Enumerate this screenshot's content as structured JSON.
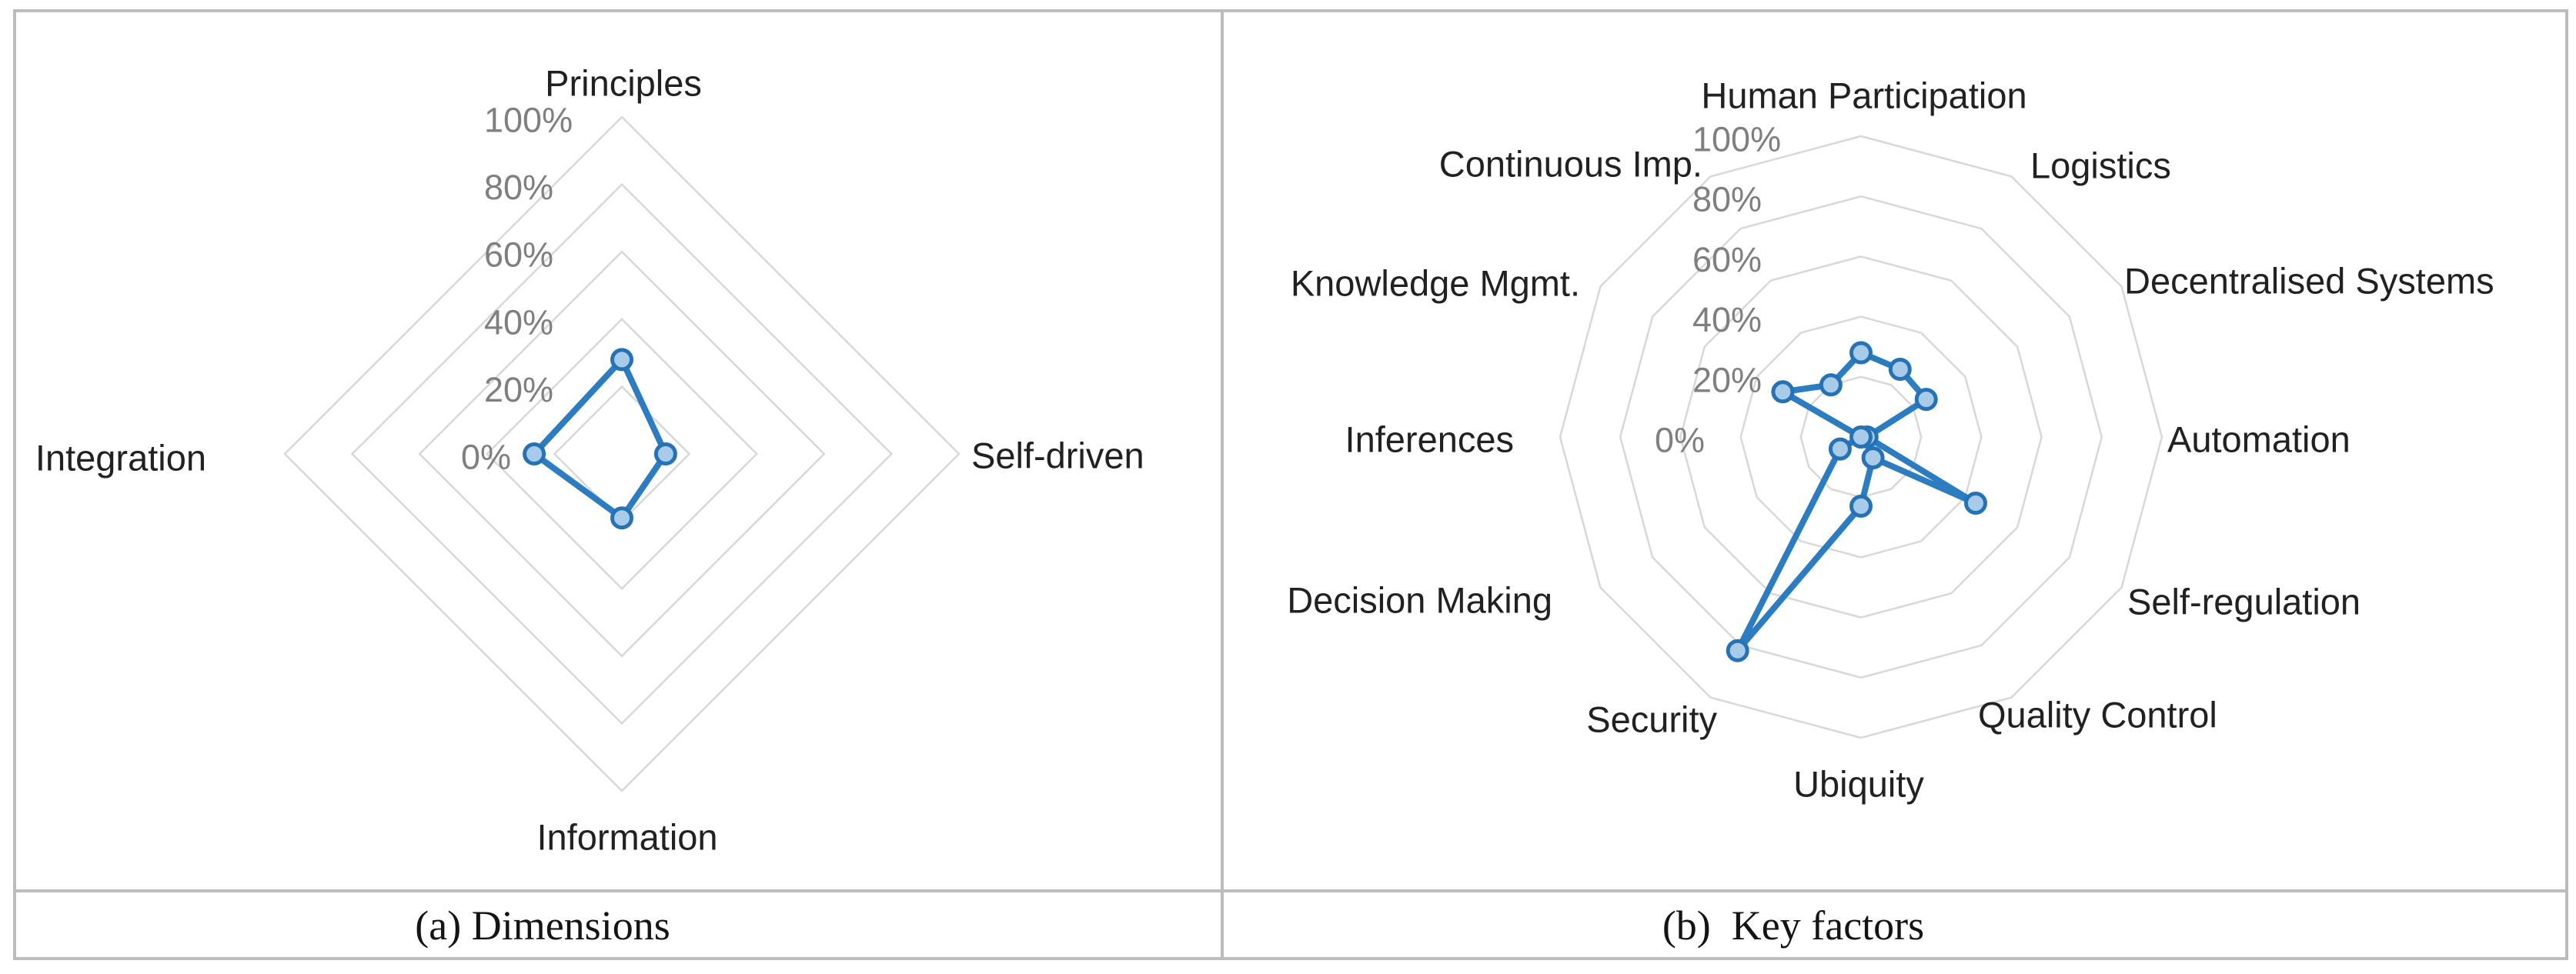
{
  "figure": {
    "caption_a": "(a) Dimensions",
    "caption_b": "(b)  Key factors"
  },
  "colors": {
    "series_line": "#2B7CC1",
    "marker_fill": "#A8CBE9",
    "marker_stroke": "#2573B6",
    "gridline": "#D8D8D8",
    "tick_text": "#7F7F7F",
    "category_text": "#212121",
    "frame_border": "#BCBCBC"
  },
  "chart_data": [
    {
      "type": "radar",
      "title": "(a) Dimensions",
      "categories": [
        "Principles",
        "Self-driven",
        "Information",
        "Integration"
      ],
      "values": [
        28,
        13,
        19,
        26
      ],
      "unit": "%",
      "axis_range": [
        0,
        100
      ],
      "tick_step": 20,
      "ticks": [
        "0%",
        "20%",
        "40%",
        "60%",
        "80%",
        "100%"
      ],
      "grid": true,
      "legend": false
    },
    {
      "type": "radar",
      "title": "(b) Key factors",
      "categories": [
        "Human Participation",
        "Logistics",
        "Decentralised Systems",
        "Automation",
        "Self-regulation",
        "Quality Control",
        "Ubiquity",
        "Security",
        "Decision Making",
        "Inferences",
        "Knowledge Mgmt.",
        "Continuous Imp."
      ],
      "values": [
        28,
        26,
        25,
        2,
        44,
        8,
        23,
        82,
        8,
        0,
        30,
        20
      ],
      "unit": "%",
      "axis_range": [
        0,
        100
      ],
      "tick_step": 20,
      "ticks": [
        "0%",
        "20%",
        "40%",
        "60%",
        "80%",
        "100%"
      ],
      "grid": true,
      "legend": false
    }
  ]
}
